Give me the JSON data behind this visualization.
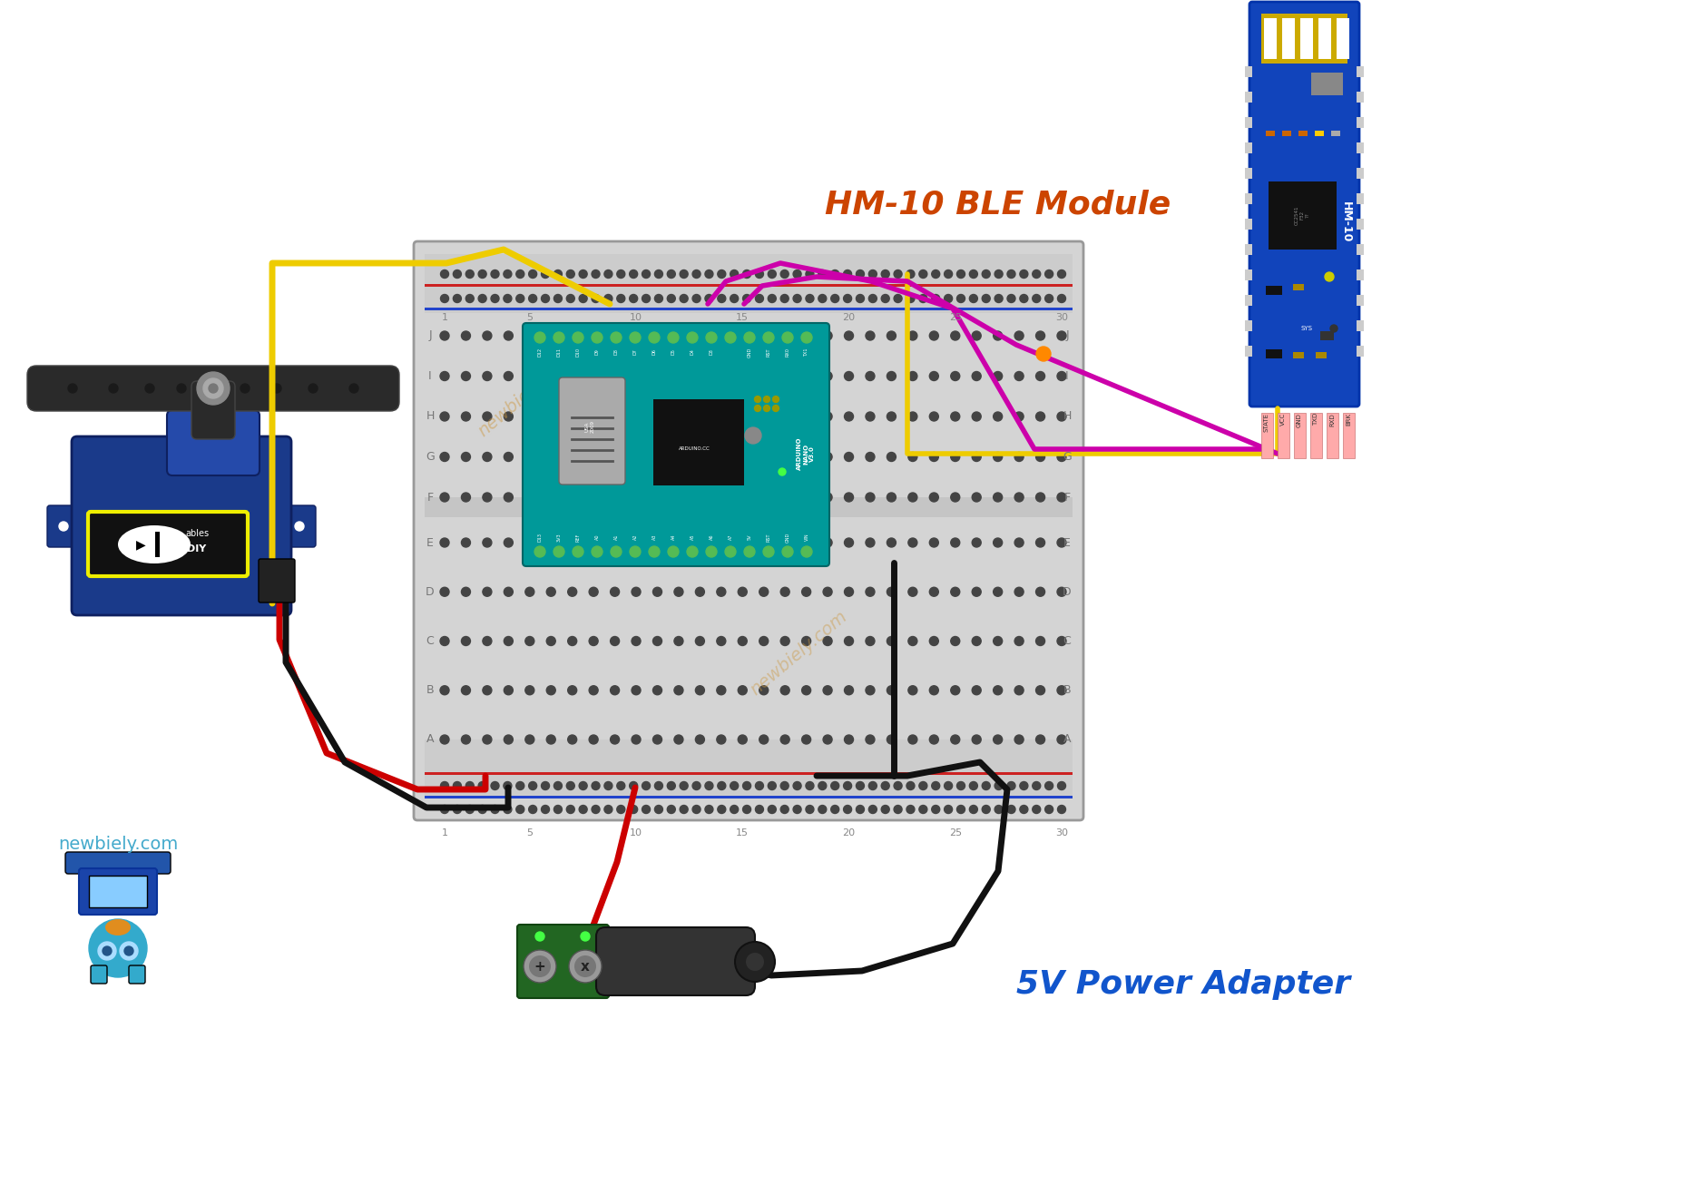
{
  "bg_color": "#ffffff",
  "ble_label": "HM-10 BLE Module",
  "ble_label_color": "#cc4400",
  "power_label": "5V Power Adapter",
  "power_label_color": "#1155cc",
  "newbiely_text": "newbiely.com",
  "newbiely_color": "#44aacc",
  "wire_yellow": "#eecc00",
  "wire_red": "#cc0000",
  "wire_black": "#111111",
  "wire_orange": "#dd7700",
  "wire_brown": "#663300",
  "wire_magenta": "#cc00aa",
  "arduino_teal": "#009999",
  "breadboard_body": "#d4d4d4",
  "breadboard_inner": "#c0c0c0",
  "hole_dark": "#555555",
  "hole_green": "#44aa44",
  "rail_red": "#cc2222",
  "rail_blue": "#2244cc",
  "ble_blue": "#1144bb",
  "ble_blue_dark": "#0033aa",
  "servo_blue": "#1a3a8a",
  "servo_blue_dark": "#0e2060"
}
